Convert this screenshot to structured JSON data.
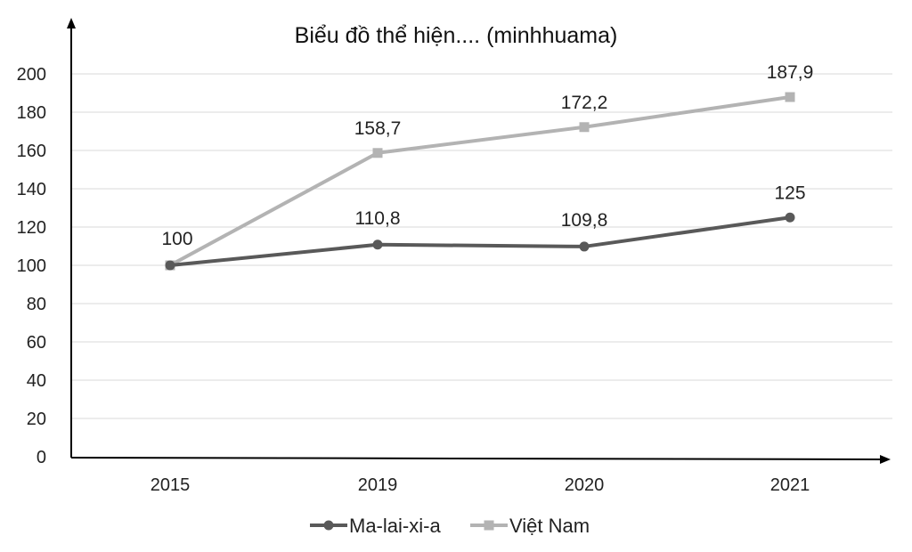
{
  "chart_data": {
    "type": "line",
    "title": "Biểu đồ thể hiện.... (minhhuama)",
    "categories": [
      "2015",
      "2019",
      "2020",
      "2021"
    ],
    "yticks": [
      "0",
      "20",
      "40",
      "60",
      "80",
      "100",
      "120",
      "140",
      "160",
      "180",
      "200"
    ],
    "ylim": [
      0,
      200
    ],
    "grid": true,
    "legend": "bottom",
    "series": [
      {
        "name": "Ma-lai-xi-a",
        "values": [
          100,
          110.8,
          109.8,
          125
        ],
        "labels": [
          "100",
          "110,8",
          "109,8",
          "125"
        ],
        "color": "#595959",
        "marker": "circle"
      },
      {
        "name": "Việt Nam",
        "values": [
          100,
          158.7,
          172.2,
          187.9
        ],
        "labels": [
          "",
          "158,7",
          "172,2",
          "187,9"
        ],
        "color": "#b3b3b3",
        "marker": "square"
      }
    ]
  }
}
